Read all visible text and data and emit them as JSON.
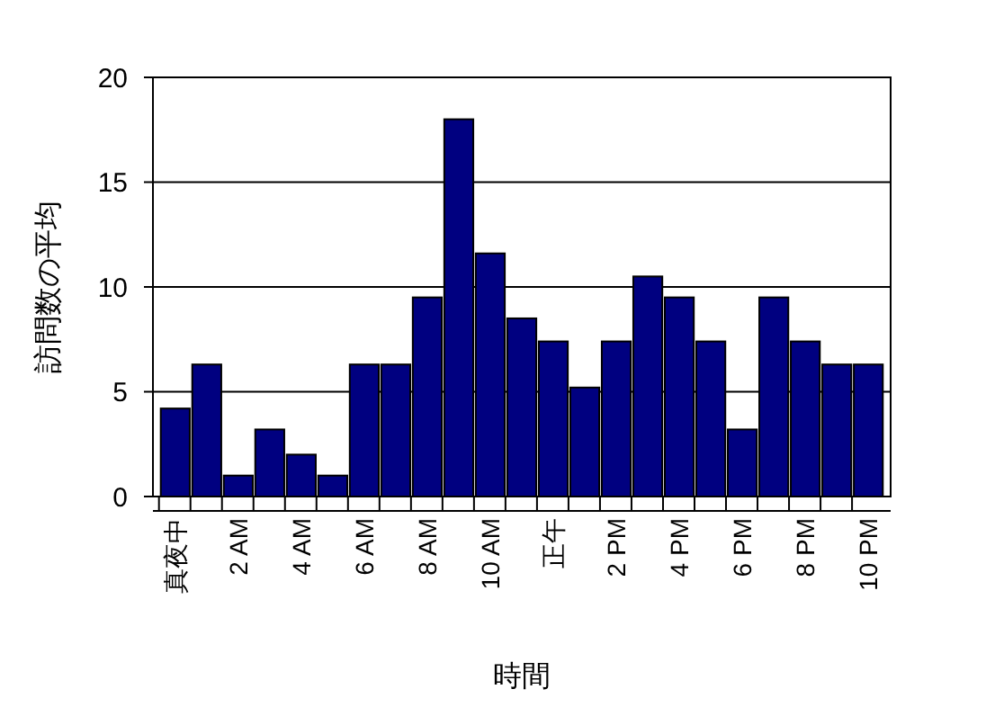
{
  "chart_data": {
    "type": "bar",
    "xlabel": "時間",
    "ylabel": "訪問数の平均",
    "categories": [
      "真夜中",
      null,
      "2 AM",
      null,
      "4 AM",
      null,
      "6 AM",
      null,
      "8 AM",
      null,
      "10 AM",
      null,
      "正午",
      null,
      "2 PM",
      null,
      "4 PM",
      null,
      "6 PM",
      null,
      "8 PM",
      null,
      "10 PM"
    ],
    "values": [
      4.2,
      6.3,
      1,
      3.2,
      2,
      1,
      6.3,
      6.3,
      9.5,
      18,
      11.6,
      8.5,
      7.4,
      5.2,
      7.4,
      10.5,
      9.5,
      7.4,
      3.2,
      9.5,
      7.4,
      6.3,
      6.3
    ],
    "color": "#000080",
    "ylim": [
      0,
      20
    ],
    "yticks": [
      0,
      5,
      10,
      15,
      20
    ],
    "grid": "y"
  }
}
